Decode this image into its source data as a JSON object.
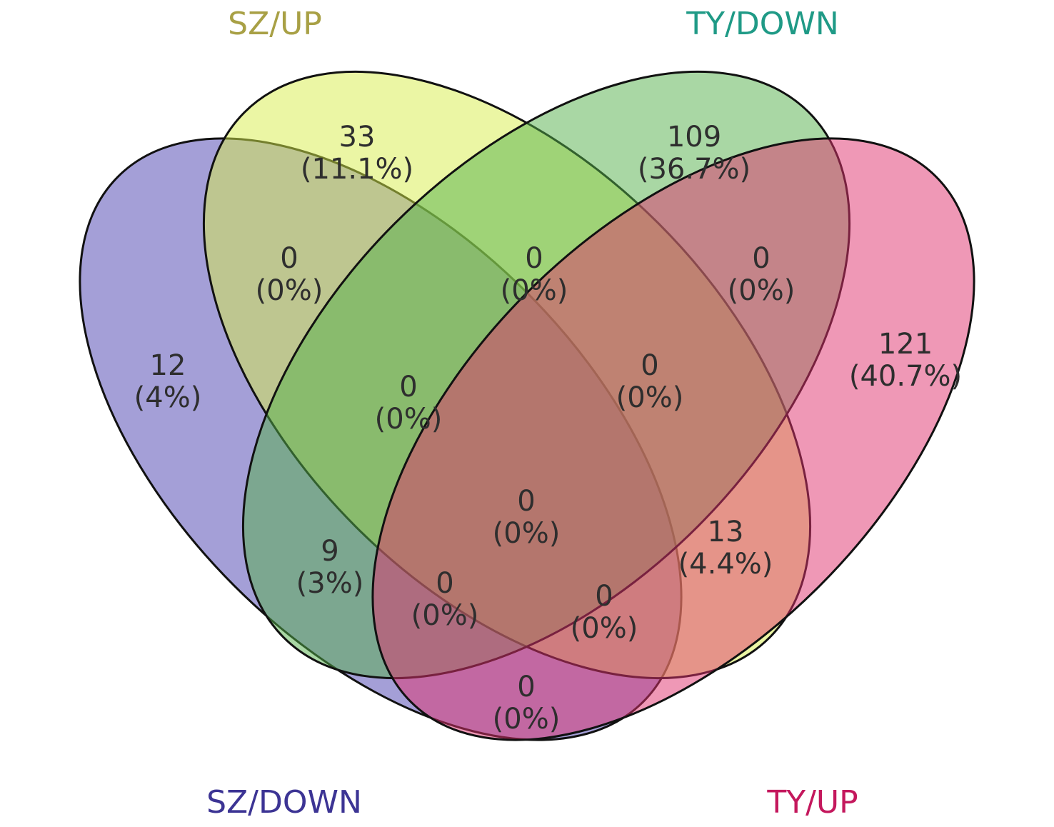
{
  "sets": [
    {
      "key": "szdown",
      "label": "SZ/DOWN",
      "color": "#3c3494"
    },
    {
      "key": "szup",
      "label": "SZ/UP",
      "color": "#a8a045"
    },
    {
      "key": "tydown",
      "label": "TY/DOWN",
      "color": "#1f9a86"
    },
    {
      "key": "tyup",
      "label": "TY/UP",
      "color": "#c4185d"
    }
  ],
  "fills": {
    "szdown": "#4a40b0",
    "szup": "#d8ee4a",
    "tydown": "#54b04a",
    "tyup": "#e0326e"
  },
  "regions": [
    {
      "key": "szdown_only",
      "count": "12",
      "percent": "(4%)"
    },
    {
      "key": "szup_only",
      "count": "33",
      "percent": "(11.1%)"
    },
    {
      "key": "tydown_only",
      "count": "109",
      "percent": "(36.7%)"
    },
    {
      "key": "tyup_only",
      "count": "121",
      "percent": "(40.7%)"
    },
    {
      "key": "szdown_szup",
      "count": "0",
      "percent": "(0%)"
    },
    {
      "key": "szup_tydown",
      "count": "0",
      "percent": "(0%)"
    },
    {
      "key": "tydown_tyup",
      "count": "0",
      "percent": "(0%)"
    },
    {
      "key": "szdown_szup_tydown",
      "count": "0",
      "percent": "(0%)"
    },
    {
      "key": "szup_tydown_tyup",
      "count": "0",
      "percent": "(0%)"
    },
    {
      "key": "all_four",
      "count": "0",
      "percent": "(0%)"
    },
    {
      "key": "szdown_tydown",
      "count": "9",
      "percent": "(3%)"
    },
    {
      "key": "szup_tyup",
      "count": "13",
      "percent": "(4.4%)"
    },
    {
      "key": "szdown_szup_tyup",
      "count": "0",
      "percent": "(0%)"
    },
    {
      "key": "szdown_tydown_tyup",
      "count": "0",
      "percent": "(0%)"
    },
    {
      "key": "szdown_tyup",
      "count": "0",
      "percent": "(0%)"
    }
  ]
}
